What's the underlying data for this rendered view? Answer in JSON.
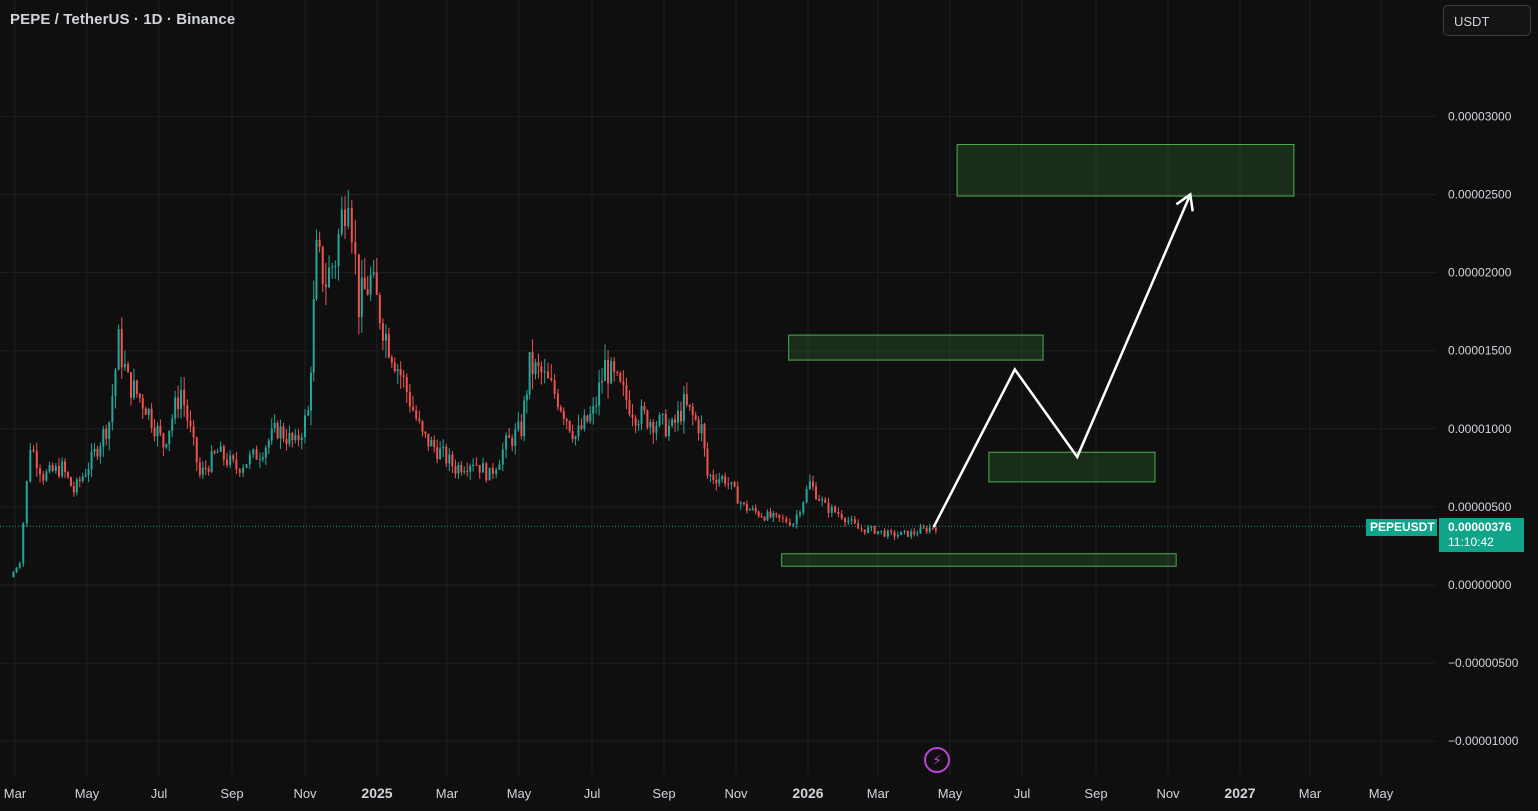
{
  "header": {
    "title": "PEPE / TetherUS · 1D · Binance"
  },
  "toolbar": {
    "currency_label": "USDT"
  },
  "price_tag": {
    "symbol": "PEPEUSDT",
    "price": "0.00000376",
    "countdown": "11:10:42"
  },
  "chart_data": {
    "type": "candlestick",
    "y_axis_ticks": [
      3e-05,
      2.5e-05,
      2e-05,
      1.5e-05,
      1e-05,
      5e-06,
      0.0,
      -5e-06,
      -1e-05
    ],
    "y_tick_labels": [
      "0.00003000",
      "0.00002500",
      "0.00002000",
      "0.00001500",
      "0.00001000",
      "0.00000500",
      "0.00000000",
      "−0.00000500",
      "−0.00001000"
    ],
    "x_tick_labels": [
      "Mar",
      "May",
      "Jul",
      "Sep",
      "Nov",
      "2025",
      "Mar",
      "May",
      "Jul",
      "Sep",
      "Nov",
      "2026",
      "Mar",
      "May",
      "Jul",
      "Sep",
      "Nov",
      "2027",
      "Mar",
      "May"
    ],
    "x_bold_labels": [
      "2025",
      "2026",
      "2027"
    ],
    "last_price": 3.76e-06,
    "price_path": [
      [
        "2024-02-26",
        5e-07
      ],
      [
        "2024-03-05",
        1.5e-06
      ],
      [
        "2024-03-14",
        9e-06
      ],
      [
        "2024-03-25",
        7e-06
      ],
      [
        "2024-04-10",
        7.5e-06
      ],
      [
        "2024-04-20",
        6e-06
      ],
      [
        "2024-05-05",
        8e-06
      ],
      [
        "2024-05-20",
        1.05e-05
      ],
      [
        "2024-05-28",
        1.55e-05
      ],
      [
        "2024-06-05",
        1.3e-05
      ],
      [
        "2024-06-20",
        1.15e-05
      ],
      [
        "2024-07-05",
        9e-06
      ],
      [
        "2024-07-20",
        1.25e-05
      ],
      [
        "2024-08-05",
        7e-06
      ],
      [
        "2024-08-20",
        8.5e-06
      ],
      [
        "2024-09-05",
        7.5e-06
      ],
      [
        "2024-09-25",
        8.5e-06
      ],
      [
        "2024-10-10",
        1e-05
      ],
      [
        "2024-10-25",
        9e-06
      ],
      [
        "2024-11-05",
        1.1e-05
      ],
      [
        "2024-11-12",
        2.1e-05
      ],
      [
        "2024-11-20",
        1.95e-05
      ],
      [
        "2024-11-28",
        2.1e-05
      ],
      [
        "2024-12-09",
        2.6e-05
      ],
      [
        "2024-12-18",
        1.8e-05
      ],
      [
        "2024-12-28",
        1.95e-05
      ],
      [
        "2025-01-10",
        1.6e-05
      ],
      [
        "2025-01-25",
        1.3e-05
      ],
      [
        "2025-02-10",
        9.5e-06
      ],
      [
        "2025-02-25",
        8.5e-06
      ],
      [
        "2025-03-10",
        7.5e-06
      ],
      [
        "2025-03-25",
        8e-06
      ],
      [
        "2025-04-08",
        7e-06
      ],
      [
        "2025-04-22",
        9e-06
      ],
      [
        "2025-05-05",
        1e-05
      ],
      [
        "2025-05-12",
        1.4e-05
      ],
      [
        "2025-05-22",
        1.35e-05
      ],
      [
        "2025-06-05",
        1.2e-05
      ],
      [
        "2025-06-20",
        9.5e-06
      ],
      [
        "2025-07-05",
        1.1e-05
      ],
      [
        "2025-07-15",
        1.4e-05
      ],
      [
        "2025-07-28",
        1.25e-05
      ],
      [
        "2025-08-10",
        1.1e-05
      ],
      [
        "2025-08-25",
        1.05e-05
      ],
      [
        "2025-09-10",
        1e-05
      ],
      [
        "2025-09-20",
        1.15e-05
      ],
      [
        "2025-10-05",
        1e-05
      ],
      [
        "2025-10-10",
        7e-06
      ],
      [
        "2025-10-25",
        6.8e-06
      ],
      [
        "2025-11-10",
        5e-06
      ],
      [
        "2025-11-25",
        4.5e-06
      ],
      [
        "2025-12-10",
        4.2e-06
      ],
      [
        "2025-12-22",
        4e-06
      ],
      [
        "2026-01-05",
        6.5e-06
      ],
      [
        "2026-01-18",
        5e-06
      ],
      [
        "2026-02-01",
        4.5e-06
      ],
      [
        "2026-02-15",
        3.6e-06
      ],
      [
        "2026-03-01",
        3.5e-06
      ],
      [
        "2026-03-15",
        3.2e-06
      ],
      [
        "2026-04-01",
        3.3e-06
      ],
      [
        "2026-04-22",
        3.76e-06
      ]
    ],
    "zones": [
      {
        "x0": "2025-12-12",
        "x1": "2026-11-12",
        "y0": 1.2e-06,
        "y1": 2e-06
      },
      {
        "x0": "2026-06-06",
        "x1": "2026-10-25",
        "y0": 6.6e-06,
        "y1": 8.5e-06
      },
      {
        "x0": "2025-12-18",
        "x1": "2026-07-22",
        "y0": 1.44e-05,
        "y1": 1.6e-05
      },
      {
        "x0": "2026-05-10",
        "x1": "2027-02-20",
        "y0": 2.49e-05,
        "y1": 2.82e-05
      }
    ],
    "projection": [
      [
        "2026-04-20",
        3.7e-06
      ],
      [
        "2026-06-28",
        1.38e-05
      ],
      [
        "2026-08-20",
        8.2e-06
      ],
      [
        "2026-11-24",
        2.5e-05
      ]
    ],
    "colors": {
      "up": "#26a69a",
      "down": "#ef5350",
      "zone": "#4caf50",
      "last_price": "#10a58a",
      "projection": "#ffffff"
    }
  }
}
